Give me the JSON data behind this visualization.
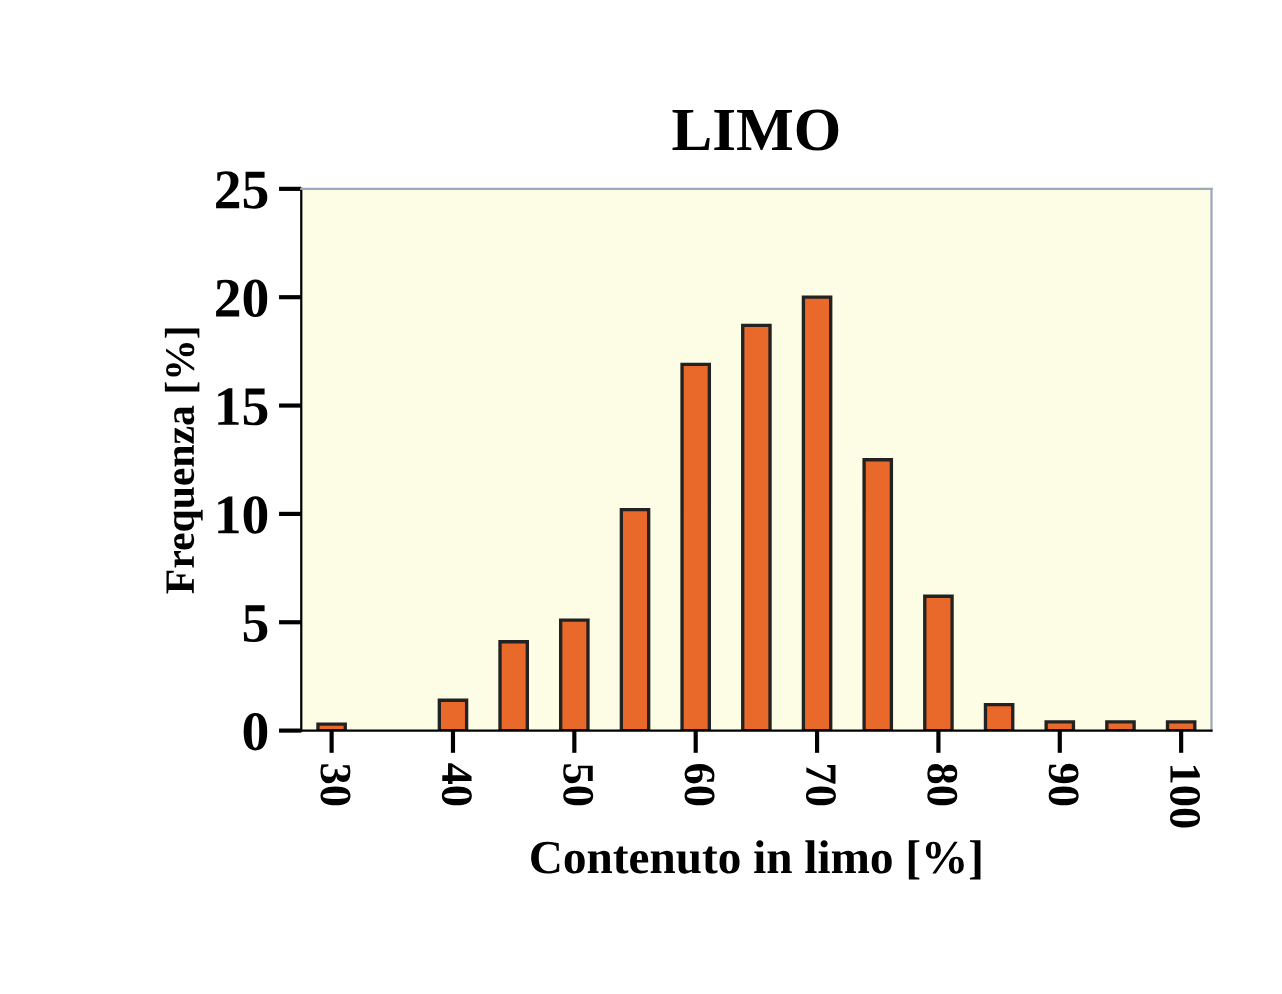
{
  "chart_data": {
    "type": "bar",
    "title": "LIMO",
    "xlabel": "Contenuto in limo [%]",
    "ylabel": "Frequenza [%]",
    "categories": [
      "30",
      null,
      "40",
      null,
      "50",
      null,
      "60",
      null,
      "70",
      null,
      "80",
      null,
      "90",
      null,
      "100"
    ],
    "values": [
      0.3,
      0,
      1.4,
      4.1,
      5.1,
      10.2,
      16.9,
      18.7,
      20,
      12.5,
      6.2,
      1.2,
      0.4,
      0.4,
      0.4
    ],
    "color": "#e8692a",
    "ylim": [
      0,
      25
    ],
    "yticks": [
      0,
      5,
      10,
      15,
      20,
      25
    ],
    "grid": false,
    "legend": false
  }
}
